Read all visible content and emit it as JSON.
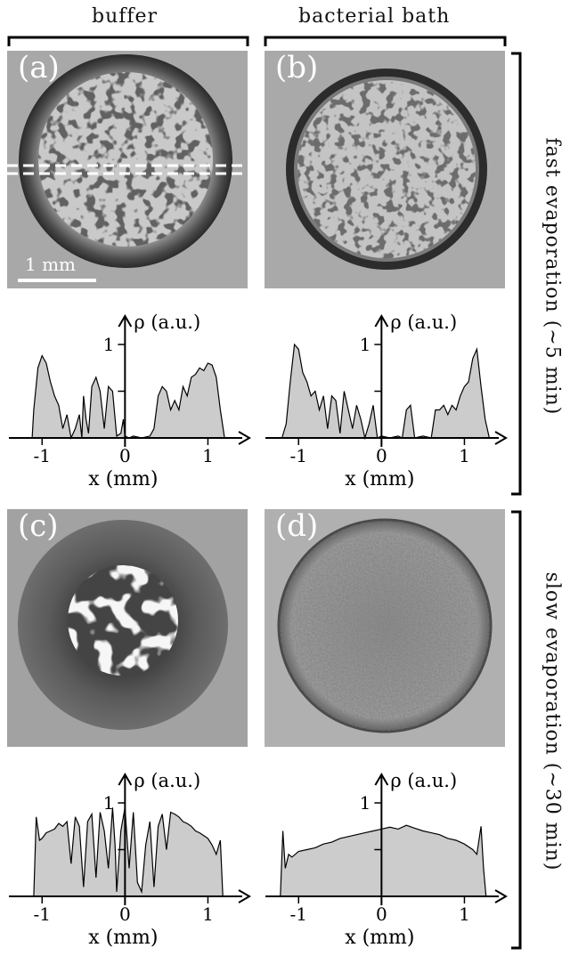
{
  "headers": {
    "left": "buffer",
    "right": "bacterial bath"
  },
  "side_labels": {
    "top": "fast evaporation (~5 min)",
    "bottom": "slow evaporation (~30 min)"
  },
  "panels": [
    {
      "label": "(a)",
      "condition": "buffer",
      "evaporation": "fast"
    },
    {
      "label": "(b)",
      "condition": "bacterial bath",
      "evaporation": "fast"
    },
    {
      "label": "(c)",
      "condition": "buffer",
      "evaporation": "slow"
    },
    {
      "label": "(d)",
      "condition": "bacterial bath",
      "evaporation": "slow"
    }
  ],
  "scale_bar": {
    "label": "1 mm"
  },
  "colors": {
    "fill": "#cccccc",
    "line": "#000000",
    "dashes": "#ffffff"
  },
  "chart_data": [
    {
      "panel": "(a)",
      "type": "area",
      "xlabel": "x (mm)",
      "ylabel": "ρ (a.u.)",
      "xticks": [
        "-1",
        "0",
        "1"
      ],
      "yticks": [
        "1"
      ],
      "xlim": [
        -1.4,
        1.5
      ],
      "ylim": [
        0,
        1.3
      ],
      "x": [
        -1.12,
        -1.1,
        -1.05,
        -1.0,
        -0.95,
        -0.9,
        -0.85,
        -0.8,
        -0.75,
        -0.7,
        -0.65,
        -0.6,
        -0.55,
        -0.52,
        -0.5,
        -0.47,
        -0.44,
        -0.4,
        -0.35,
        -0.3,
        -0.25,
        -0.2,
        -0.15,
        -0.1,
        -0.05,
        -0.02,
        0.0,
        0.05,
        0.1,
        0.2,
        0.3,
        0.35,
        0.4,
        0.45,
        0.5,
        0.55,
        0.6,
        0.65,
        0.7,
        0.75,
        0.8,
        0.85,
        0.9,
        0.95,
        1.0,
        1.05,
        1.1,
        1.15,
        1.2
      ],
      "y": [
        0,
        0.3,
        0.75,
        0.88,
        0.8,
        0.6,
        0.45,
        0.35,
        0.1,
        0.25,
        0.0,
        0.1,
        0.25,
        0.0,
        0.45,
        0.2,
        0.05,
        0.55,
        0.65,
        0.5,
        0.1,
        0.55,
        0.5,
        0.02,
        0.05,
        0.2,
        0.02,
        0.0,
        0.02,
        0.0,
        0.02,
        0.1,
        0.45,
        0.55,
        0.5,
        0.3,
        0.4,
        0.3,
        0.55,
        0.45,
        0.65,
        0.68,
        0.75,
        0.72,
        0.8,
        0.78,
        0.65,
        0.3,
        0.0
      ]
    },
    {
      "panel": "(b)",
      "type": "area",
      "xlabel": "x (mm)",
      "ylabel": "ρ (a.u.)",
      "xticks": [
        "-1",
        "0",
        "1"
      ],
      "yticks": [
        "1"
      ],
      "xlim": [
        -1.4,
        1.5
      ],
      "ylim": [
        0,
        1.3
      ],
      "x": [
        -1.2,
        -1.15,
        -1.1,
        -1.05,
        -1.0,
        -0.95,
        -0.9,
        -0.85,
        -0.8,
        -0.75,
        -0.7,
        -0.65,
        -0.6,
        -0.55,
        -0.5,
        -0.45,
        -0.4,
        -0.35,
        -0.3,
        -0.25,
        -0.2,
        -0.15,
        -0.1,
        -0.05,
        0.0,
        0.1,
        0.2,
        0.25,
        0.3,
        0.35,
        0.4,
        0.5,
        0.6,
        0.65,
        0.7,
        0.75,
        0.8,
        0.85,
        0.9,
        0.95,
        1.0,
        1.05,
        1.1,
        1.15,
        1.2,
        1.25,
        1.3
      ],
      "y": [
        0,
        0.15,
        0.6,
        1.0,
        0.95,
        0.7,
        0.6,
        0.45,
        0.5,
        0.3,
        0.45,
        0.1,
        0.45,
        0.4,
        0.05,
        0.5,
        0.3,
        0.1,
        0.35,
        0.2,
        0.0,
        0.15,
        0.35,
        0.0,
        0.02,
        0.0,
        0.02,
        0.0,
        0.3,
        0.35,
        0.0,
        0.02,
        0.0,
        0.3,
        0.3,
        0.35,
        0.25,
        0.35,
        0.3,
        0.45,
        0.55,
        0.6,
        0.85,
        0.95,
        0.55,
        0.2,
        0.0
      ]
    },
    {
      "panel": "(c)",
      "type": "area",
      "xlabel": "x (mm)",
      "ylabel": "ρ (a.u.)",
      "xticks": [
        "-1",
        "0",
        "1"
      ],
      "yticks": [
        "1"
      ],
      "xlim": [
        -1.4,
        1.5
      ],
      "ylim": [
        0,
        1.3
      ],
      "x": [
        -1.1,
        -1.07,
        -1.03,
        -1.0,
        -0.95,
        -0.9,
        -0.85,
        -0.8,
        -0.75,
        -0.7,
        -0.65,
        -0.6,
        -0.55,
        -0.5,
        -0.45,
        -0.4,
        -0.35,
        -0.3,
        -0.25,
        -0.2,
        -0.15,
        -0.12,
        -0.1,
        -0.05,
        0.0,
        0.05,
        0.1,
        0.15,
        0.2,
        0.25,
        0.3,
        0.35,
        0.4,
        0.45,
        0.5,
        0.55,
        0.6,
        0.65,
        0.7,
        0.75,
        0.8,
        0.85,
        0.9,
        0.95,
        1.0,
        1.05,
        1.1,
        1.15,
        1.18
      ],
      "y": [
        0,
        0.85,
        0.6,
        0.62,
        0.68,
        0.7,
        0.72,
        0.78,
        0.75,
        0.8,
        0.35,
        0.85,
        0.75,
        0.1,
        0.8,
        0.88,
        0.2,
        0.9,
        0.7,
        0.3,
        0.95,
        0.55,
        0.05,
        0.7,
        0.95,
        0.3,
        0.9,
        0.15,
        0.05,
        0.55,
        0.8,
        0.1,
        0.75,
        0.88,
        0.5,
        0.9,
        0.88,
        0.85,
        0.8,
        0.78,
        0.75,
        0.7,
        0.68,
        0.65,
        0.62,
        0.55,
        0.45,
        0.6,
        0.0
      ]
    },
    {
      "panel": "(d)",
      "type": "area",
      "xlabel": "x (mm)",
      "ylabel": "ρ (a.u.)",
      "xticks": [
        "-1",
        "0",
        "1"
      ],
      "yticks": [
        "1"
      ],
      "xlim": [
        -1.4,
        1.5
      ],
      "ylim": [
        0,
        1.3
      ],
      "x": [
        -1.22,
        -1.19,
        -1.16,
        -1.12,
        -1.08,
        -1.0,
        -0.9,
        -0.8,
        -0.7,
        -0.6,
        -0.5,
        -0.4,
        -0.3,
        -0.2,
        -0.1,
        0.0,
        0.1,
        0.2,
        0.3,
        0.4,
        0.5,
        0.6,
        0.7,
        0.8,
        0.9,
        1.0,
        1.1,
        1.15,
        1.2,
        1.23,
        1.26
      ],
      "y": [
        0,
        0.7,
        0.3,
        0.45,
        0.42,
        0.48,
        0.5,
        0.52,
        0.56,
        0.58,
        0.62,
        0.64,
        0.66,
        0.68,
        0.7,
        0.72,
        0.74,
        0.72,
        0.76,
        0.73,
        0.7,
        0.68,
        0.66,
        0.62,
        0.6,
        0.56,
        0.5,
        0.45,
        0.75,
        0.3,
        0.0
      ]
    }
  ]
}
